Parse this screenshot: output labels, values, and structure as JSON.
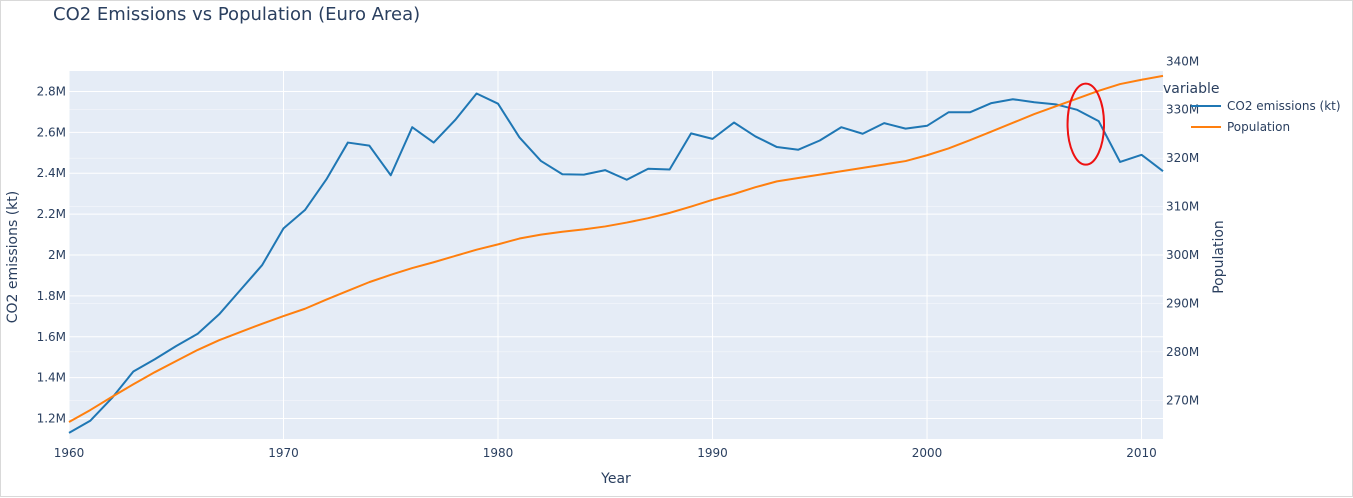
{
  "chart_data": {
    "type": "line",
    "title": "CO2 Emissions vs Population (Euro Area)",
    "xlabel": "Year",
    "ylabel": "CO2 emissions (kt)",
    "y2label": "Population",
    "xlim": [
      1960,
      2011
    ],
    "ylim": [
      1100000,
      2900000
    ],
    "y2lim": [
      262000000,
      338000000
    ],
    "xticks": [
      1960,
      1970,
      1980,
      1990,
      2000,
      2010
    ],
    "xtick_labels": [
      "1960",
      "1970",
      "1980",
      "1990",
      "2000",
      "2010"
    ],
    "yticks": [
      1200000,
      1400000,
      1600000,
      1800000,
      2000000,
      2200000,
      2400000,
      2600000,
      2800000
    ],
    "ytick_labels": [
      "1.2M",
      "1.4M",
      "1.6M",
      "1.8M",
      "2M",
      "2.2M",
      "2.4M",
      "2.6M",
      "2.8M"
    ],
    "y2ticks": [
      270000000,
      280000000,
      290000000,
      300000000,
      310000000,
      320000000,
      330000000,
      340000000
    ],
    "y2tick_labels": [
      "270M",
      "280M",
      "290M",
      "300M",
      "310M",
      "320M",
      "330M",
      "340M"
    ],
    "legend_title": "variable",
    "legend_position": "top-right",
    "grid": true,
    "series": [
      {
        "name": "CO2 emissions (kt)",
        "axis": "y",
        "color": "#1f77b4",
        "x": [
          1960,
          1961,
          1962,
          1963,
          1964,
          1965,
          1966,
          1967,
          1968,
          1969,
          1970,
          1971,
          1972,
          1973,
          1974,
          1975,
          1976,
          1977,
          1978,
          1979,
          1980,
          1981,
          1982,
          1983,
          1984,
          1985,
          1986,
          1987,
          1988,
          1989,
          1990,
          1991,
          1992,
          1993,
          1994,
          1995,
          1996,
          1997,
          1998,
          1999,
          2000,
          2001,
          2002,
          2003,
          2004,
          2005,
          2006,
          2007,
          2008,
          2009,
          2010,
          2011
        ],
        "values": [
          1130000,
          1190000,
          1300000,
          1430000,
          1490000,
          1555000,
          1615000,
          1710000,
          1830000,
          1950000,
          2130000,
          2220000,
          2370000,
          2550000,
          2535000,
          2390000,
          2625000,
          2550000,
          2660000,
          2790000,
          2740000,
          2575000,
          2460000,
          2395000,
          2393000,
          2415000,
          2368000,
          2422000,
          2418000,
          2595000,
          2568000,
          2648000,
          2580000,
          2528000,
          2515000,
          2560000,
          2625000,
          2593000,
          2645000,
          2618000,
          2632000,
          2698000,
          2698000,
          2743000,
          2762000,
          2747000,
          2737000,
          2710000,
          2655000,
          2455000,
          2490000,
          2410000
        ]
      },
      {
        "name": "Population",
        "axis": "y2",
        "color": "#ff7f0e",
        "x": [
          1960,
          1961,
          1962,
          1963,
          1964,
          1965,
          1966,
          1967,
          1968,
          1969,
          1970,
          1971,
          1972,
          1973,
          1974,
          1975,
          1976,
          1977,
          1978,
          1979,
          1980,
          1981,
          1982,
          1983,
          1984,
          1985,
          1986,
          1987,
          1988,
          1989,
          1990,
          1991,
          1992,
          1993,
          1994,
          1995,
          1996,
          1997,
          1998,
          1999,
          2000,
          2001,
          2002,
          2003,
          2004,
          2005,
          2006,
          2007,
          2008,
          2009,
          2010,
          2011
        ],
        "values": [
          265500000,
          268000000,
          270700000,
          273300000,
          275800000,
          278100000,
          280400000,
          282400000,
          284100000,
          285800000,
          287400000,
          288900000,
          290800000,
          292600000,
          294400000,
          295900000,
          297300000,
          298500000,
          299800000,
          301100000,
          302200000,
          303400000,
          304200000,
          304800000,
          305300000,
          305900000,
          306700000,
          307600000,
          308700000,
          310000000,
          311400000,
          312600000,
          314000000,
          315200000,
          315900000,
          316600000,
          317300000,
          318000000,
          318700000,
          319400000,
          320600000,
          322000000,
          323700000,
          325500000,
          327300000,
          329100000,
          330700000,
          332300000,
          333900000,
          335300000,
          336200000,
          337000000
        ]
      }
    ],
    "annotations": [
      {
        "type": "ellipse",
        "color": "#ee1111",
        "x_center": 2007.4,
        "y_center": 2640000,
        "x_radius": 0.85,
        "y_radius": 198000
      }
    ]
  }
}
